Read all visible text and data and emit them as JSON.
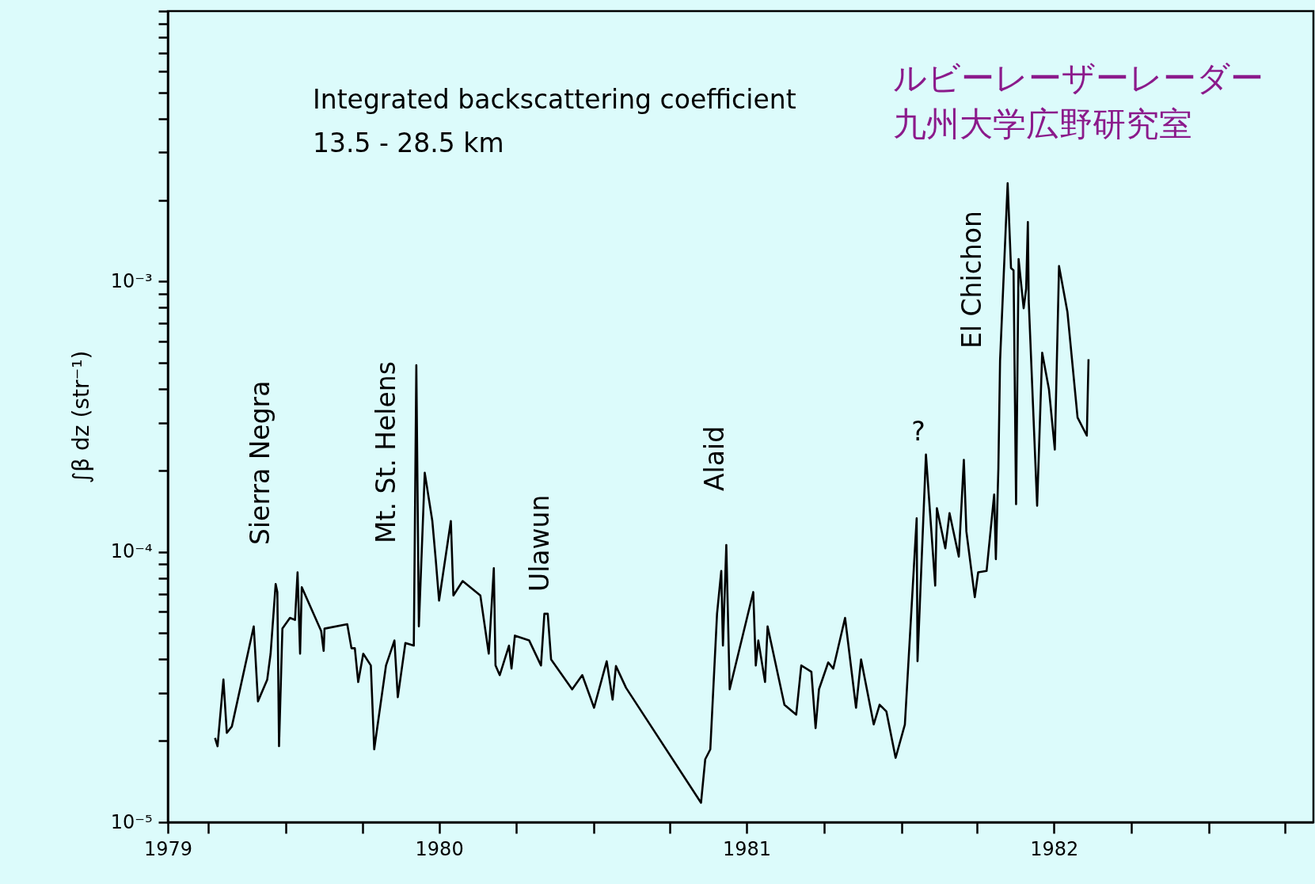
{
  "chart_data": {
    "type": "line",
    "title": "Integrated backscattering coefficient",
    "subtitle": "13.5 - 28.5 km",
    "ylabel": "∫β dz (str⁻¹)",
    "log": true,
    "annotations": [
      "ルビーレーザーレーダー",
      "九州大学広野研究室",
      "Sierra Negra",
      "Mt. St. Helens",
      "Ulawun",
      "Alaid",
      "?",
      "El Chichon"
    ],
    "x": [
      "1979-10-09",
      "1979-10-12",
      "1979-10-19",
      "1979-10-23",
      "1979-10-29",
      "1979-11-24",
      "1979-11-29",
      "1979-12-10",
      "1979-12-14",
      "1979-12-20",
      "1979-12-22",
      "1979-12-24",
      "1979-12-28",
      "1980-01-06",
      "1980-01-12",
      "1980-01-15",
      "1980-01-18",
      "1980-01-20",
      "1980-02-12",
      "1980-02-15",
      "1980-02-16",
      "1980-03-14",
      "1980-03-19",
      "1980-03-23",
      "1980-03-27",
      "1980-04-02",
      "1980-04-11",
      "1980-04-15",
      "1980-04-29",
      "1980-05-09",
      "1980-05-13",
      "1980-05-22",
      "1980-06-01",
      "1980-06-04",
      "1980-06-07",
      "1980-06-14",
      "1980-06-23",
      "1980-06-27",
      "1980-07-01",
      "1980-07-15",
      "1980-07-18",
      "1980-07-29",
      "1980-08-19",
      "1980-08-29",
      "1980-09-04",
      "1980-09-06",
      "1980-09-11",
      "1980-09-22",
      "1980-09-25",
      "1980-09-29",
      "1980-10-16",
      "1980-10-30",
      "1980-11-03",
      "1980-11-07",
      "1980-11-11",
      "1980-12-06",
      "1980-12-18",
      "1981-01-01",
      "1981-01-16",
      "1981-01-23",
      "1981-01-27",
      "1981-02-08",
      "1981-05-08",
      "1981-05-13",
      "1981-05-19",
      "1981-05-27",
      "1981-06-01",
      "1981-06-03",
      "1981-06-07",
      "1981-06-11",
      "1981-07-09",
      "1981-07-12",
      "1981-07-15",
      "1981-07-23",
      "1981-07-26",
      "1981-08-15",
      "1981-08-29",
      "1981-09-04",
      "1981-09-16",
      "1981-09-21",
      "1981-09-25",
      "1981-10-06",
      "1981-10-12",
      "1981-10-26",
      "1981-11-08",
      "1981-11-14",
      "1981-11-29",
      "1981-12-06",
      "1981-12-14",
      "1981-12-25",
      "1982-01-05",
      "1982-01-19",
      "1982-01-20",
      "1982-01-30",
      "1982-02-10",
      "1982-02-12",
      "1982-02-22",
      "1982-02-27",
      "1982-03-10",
      "1982-03-16",
      "1982-03-19",
      "1982-03-29",
      "1982-04-02",
      "1982-04-12",
      "1982-04-21",
      "1982-04-23",
      "1982-04-26",
      "1982-04-28",
      "1982-05-07",
      "1982-05-11",
      "1982-05-14",
      "1982-05-17",
      "1982-05-20",
      "1982-05-26",
      "1982-05-29",
      "1982-05-31",
      "1982-06-01",
      "1982-06-11",
      "1982-06-17",
      "1982-06-25",
      "1982-07-02",
      "1982-07-07",
      "1982-07-17",
      "1982-07-29",
      "1982-08-09",
      "1982-08-11"
    ],
    "series": [
      {
        "color": "#000000",
        "values": [
          2.05e-05,
          1.91e-05,
          3.37e-05,
          2.14e-05,
          2.26e-05,
          5.3e-05,
          2.8e-05,
          3.37e-05,
          4.2e-05,
          7.6e-05,
          7.1e-05,
          1.91e-05,
          5.2e-05,
          5.7e-05,
          5.6e-05,
          8.4e-05,
          4.2e-05,
          7.4e-05,
          5.1e-05,
          4.3e-05,
          5.2e-05,
          5.4e-05,
          4.4e-05,
          4.4e-05,
          3.3e-05,
          4.2e-05,
          3.8e-05,
          1.86e-05,
          3.8e-05,
          4.7e-05,
          2.9e-05,
          4.6e-05,
          4.5e-05,
          0.00049,
          5.3e-05,
          0.000196,
          0.00013,
          9.4e-05,
          6.6e-05,
          0.00013,
          6.9e-05,
          7.8e-05,
          6.9e-05,
          4.2e-05,
          8.7e-05,
          3.8e-05,
          3.5e-05,
          4.5e-05,
          3.7e-05,
          4.9e-05,
          4.7e-05,
          3.8e-05,
          5.9e-05,
          5.9e-05,
          4e-05,
          3.1e-05,
          3.5e-05,
          2.65e-05,
          3.94e-05,
          2.84e-05,
          3.78e-05,
          3.14e-05,
          1.18e-05,
          1.71e-05,
          1.86e-05,
          5.9e-05,
          8.5e-05,
          4.5e-05,
          0.000106,
          3.1e-05,
          7.1e-05,
          3.8e-05,
          4.7e-05,
          3.3e-05,
          5.3e-05,
          2.72e-05,
          2.5e-05,
          3.8e-05,
          3.6e-05,
          2.23e-05,
          3.1e-05,
          3.9e-05,
          3.7e-05,
          5.7e-05,
          2.65e-05,
          4e-05,
          2.3e-05,
          2.72e-05,
          2.57e-05,
          1.73e-05,
          2.3e-05,
          0.000133,
          3.94e-05,
          0.000229,
          7.5e-05,
          0.000145,
          0.000103,
          0.000139,
          9.6e-05,
          0.000219,
          0.000119,
          6.8e-05,
          8.4e-05,
          8.5e-05,
          0.000163,
          9.4e-05,
          0.000204,
          0.00051,
          0.00231,
          0.00112,
          0.0011,
          0.00015,
          0.00121,
          0.000796,
          0.00094,
          0.00166,
          0.00085,
          0.000148,
          0.000545,
          0.0004,
          0.000239,
          0.00114,
          0.00077,
          0.000314,
          0.000269,
          0.000516
        ]
      }
    ],
    "xlim": [
      "1979-08-14",
      "1983-05-05"
    ],
    "xticks": [
      {
        "value": "1979-08-14",
        "label": "1979"
      },
      {
        "value": "1979-10-01",
        "label": null
      },
      {
        "value": "1980-01-01",
        "label": null
      },
      {
        "value": "1980-04-01",
        "label": null
      },
      {
        "value": "1980-07-01",
        "label": "1980"
      },
      {
        "value": "1980-10-01",
        "label": null
      },
      {
        "value": "1981-01-01",
        "label": null
      },
      {
        "value": "1981-04-01",
        "label": null
      },
      {
        "value": "1981-07-01",
        "label": "1981"
      },
      {
        "value": "1981-10-01",
        "label": null
      },
      {
        "value": "1982-01-01",
        "label": null
      },
      {
        "value": "1982-04-01",
        "label": null
      },
      {
        "value": "1982-07-01",
        "label": "1982"
      },
      {
        "value": "1982-10-01",
        "label": null
      },
      {
        "value": "1983-01-01",
        "label": null
      },
      {
        "value": "1983-04-01",
        "label": null
      }
    ],
    "ylim": [
      1e-05,
      0.01
    ],
    "yticks": [
      {
        "value": 1e-05,
        "label": "10⁻⁵"
      },
      {
        "value": 2e-05,
        "label": null
      },
      {
        "value": 3e-05,
        "label": null
      },
      {
        "value": 4e-05,
        "label": null
      },
      {
        "value": 5e-05,
        "label": null
      },
      {
        "value": 6e-05,
        "label": null
      },
      {
        "value": 7e-05,
        "label": null
      },
      {
        "value": 8e-05,
        "label": null
      },
      {
        "value": 9e-05,
        "label": null
      },
      {
        "value": 0.0001,
        "label": "10⁻⁴"
      },
      {
        "value": 0.0002,
        "label": null
      },
      {
        "value": 0.0003,
        "label": null
      },
      {
        "value": 0.0004,
        "label": null
      },
      {
        "value": 0.0005,
        "label": null
      },
      {
        "value": 0.0006,
        "label": null
      },
      {
        "value": 0.0007,
        "label": null
      },
      {
        "value": 0.0008,
        "label": null
      },
      {
        "value": 0.0009,
        "label": null
      },
      {
        "value": 0.001,
        "label": "10⁻³"
      },
      {
        "value": 0.002,
        "label": null
      },
      {
        "value": 0.003,
        "label": null
      },
      {
        "value": 0.004,
        "label": null
      },
      {
        "value": 0.005,
        "label": null
      },
      {
        "value": 0.006,
        "label": null
      },
      {
        "value": 0.007,
        "label": null
      },
      {
        "value": 0.008,
        "label": null
      },
      {
        "value": 0.009,
        "label": null
      },
      {
        "value": 0.01,
        "label": null
      }
    ]
  }
}
